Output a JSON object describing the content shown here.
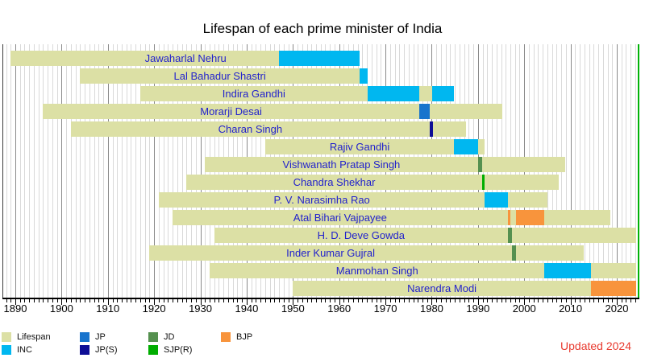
{
  "title": "Lifespan of each prime minister of India",
  "updated_note": "Updated 2024",
  "colors": {
    "background": "#ffffff",
    "title_text": "#000000",
    "pm_name_text": "#2222cc",
    "grid_minor": "#d9d9d9",
    "grid_major": "#8a8a8a",
    "axis": "#000000",
    "present_line": "#00b307",
    "updated_note_text": "#e8392e"
  },
  "chart_data": {
    "type": "bar",
    "subtype": "lifespan-timeline-gantt",
    "title": "Lifespan of each prime minister of India",
    "legend_position": "bottom-left",
    "grid": "on",
    "x_axis": {
      "min": 1887,
      "max": 2024.7,
      "tick_step_major": 10,
      "tick_step_minor": 1,
      "tick_labels": [
        "1890",
        "1900",
        "1910",
        "1920",
        "1930",
        "1940",
        "1950",
        "1960",
        "1970",
        "1980",
        "1990",
        "2000",
        "2010",
        "2020"
      ]
    },
    "present_year": 2024.55,
    "parties": {
      "Lifespan": "#dce0a5",
      "INC": "#00b7f0",
      "JP": "#1874cd",
      "JP(S)": "#0e0e96",
      "JD": "#55904f",
      "SJP(R)": "#00ad00",
      "BJP": "#f8943c"
    },
    "prime_ministers": [
      {
        "name": "Jawaharlal Nehru",
        "birth": 1889,
        "death": 1964.4,
        "label_year": 1926.8,
        "terms": [
          {
            "party": "INC",
            "start": 1947.0,
            "end": 1964.4
          }
        ]
      },
      {
        "name": "Lal Bahadur Shastri",
        "birth": 1904,
        "death": 1966.1,
        "terms": [
          {
            "party": "INC",
            "start": 1964.4,
            "end": 1966.1
          }
        ]
      },
      {
        "name": "Indira Gandhi",
        "birth": 1917,
        "death": 1984.85,
        "terms": [
          {
            "party": "INC",
            "start": 1966.1,
            "end": 1977.25
          },
          {
            "party": "INC",
            "start": 1980.05,
            "end": 1984.85
          }
        ]
      },
      {
        "name": "Morarji Desai",
        "birth": 1896,
        "death": 1995.3,
        "terms": [
          {
            "party": "JP",
            "start": 1977.25,
            "end": 1979.55
          }
        ]
      },
      {
        "name": "Charan Singh",
        "birth": 1902,
        "death": 1987.4,
        "terms": [
          {
            "party": "JP(S)",
            "start": 1979.55,
            "end": 1980.3
          }
        ]
      },
      {
        "name": "Rajiv Gandhi",
        "birth": 1944,
        "death": 1991.4,
        "terms": [
          {
            "party": "INC",
            "start": 1984.85,
            "end": 1989.95
          }
        ]
      },
      {
        "name": "Vishwanath Pratap Singh",
        "birth": 1931,
        "death": 2008.9,
        "terms": [
          {
            "party": "JD",
            "start": 1989.95,
            "end": 1990.85
          }
        ]
      },
      {
        "name": "Chandra Shekhar",
        "birth": 1927,
        "death": 2007.5,
        "terms": [
          {
            "party": "SJP(R)",
            "start": 1990.85,
            "end": 1991.5
          }
        ]
      },
      {
        "name": "P. V. Narasimha Rao",
        "birth": 1921,
        "death": 2004.95,
        "terms": [
          {
            "party": "INC",
            "start": 1991.5,
            "end": 1996.4
          }
        ]
      },
      {
        "name": "Atal Bihari Vajpayee",
        "birth": 1924,
        "death": 2018.6,
        "terms": [
          {
            "party": "BJP",
            "start": 1996.4,
            "end": 1997.0
          },
          {
            "party": "BJP",
            "start": 1998.25,
            "end": 2004.4
          }
        ]
      },
      {
        "name": "H. D. Deve Gowda",
        "birth": 1933,
        "death": 2024.2,
        "alive": true,
        "terms": [
          {
            "party": "JD",
            "start": 1996.45,
            "end": 1997.3
          }
        ]
      },
      {
        "name": "Inder Kumar Gujral",
        "birth": 1919,
        "death": 2012.9,
        "terms": [
          {
            "party": "JD",
            "start": 1997.3,
            "end": 1998.2
          }
        ]
      },
      {
        "name": "Manmohan Singh",
        "birth": 1932,
        "death": 2024.2,
        "alive": true,
        "terms": [
          {
            "party": "INC",
            "start": 2004.4,
            "end": 2014.4
          }
        ]
      },
      {
        "name": "Narendra Modi",
        "birth": 1950,
        "death": 2024.2,
        "alive": true,
        "terms": [
          {
            "party": "BJP",
            "start": 2014.4,
            "end": 2024.2
          }
        ]
      }
    ]
  },
  "legend": {
    "columns": [
      [
        "Lifespan",
        "INC"
      ],
      [
        "JP",
        "JP(S)"
      ],
      [
        "JD",
        "SJP(R)"
      ],
      [
        "BJP"
      ]
    ]
  }
}
